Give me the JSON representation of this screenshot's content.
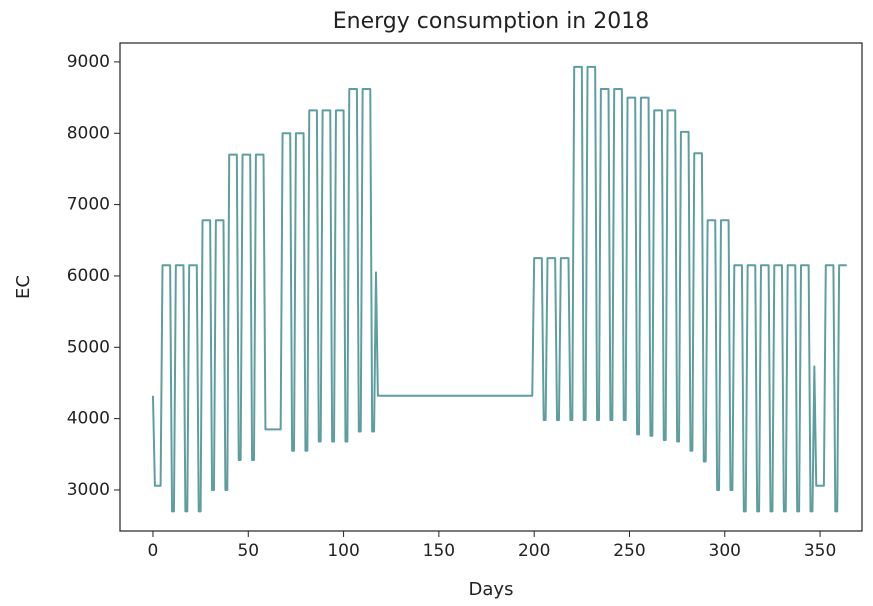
{
  "chart_data": {
    "type": "line",
    "title": "Energy consumption in 2018",
    "x_label": "Days",
    "y_label": "EC",
    "xlim": [
      -17.3,
      372
    ],
    "ylim": [
      2425,
      9265
    ],
    "xticks": [
      0,
      50,
      100,
      150,
      200,
      250,
      300,
      350
    ],
    "yticks": [
      3000,
      4000,
      5000,
      6000,
      7000,
      8000,
      9000
    ],
    "x": [
      0,
      1,
      2,
      3,
      4,
      5,
      6,
      7,
      8,
      9,
      10,
      11,
      12,
      13,
      14,
      15,
      16,
      17,
      18,
      19,
      20,
      21,
      22,
      23,
      24,
      25,
      26,
      27,
      28,
      29,
      30,
      31,
      32,
      33,
      34,
      35,
      36,
      37,
      38,
      39,
      40,
      41,
      42,
      43,
      44,
      45,
      46,
      47,
      48,
      49,
      50,
      51,
      52,
      53,
      54,
      55,
      56,
      57,
      58,
      59,
      60,
      61,
      62,
      63,
      64,
      65,
      66,
      67,
      68,
      69,
      70,
      71,
      72,
      73,
      74,
      75,
      76,
      77,
      78,
      79,
      80,
      81,
      82,
      83,
      84,
      85,
      86,
      87,
      88,
      89,
      90,
      91,
      92,
      93,
      94,
      95,
      96,
      97,
      98,
      99,
      100,
      101,
      102,
      103,
      104,
      105,
      106,
      107,
      108,
      109,
      110,
      111,
      112,
      113,
      114,
      115,
      116,
      117,
      118,
      119,
      120,
      121,
      122,
      123,
      124,
      125,
      126,
      127,
      128,
      129,
      130,
      131,
      132,
      133,
      134,
      135,
      136,
      137,
      138,
      139,
      140,
      141,
      142,
      143,
      144,
      145,
      146,
      147,
      148,
      149,
      150,
      151,
      152,
      153,
      154,
      155,
      156,
      157,
      158,
      159,
      160,
      161,
      162,
      163,
      164,
      165,
      166,
      167,
      168,
      169,
      170,
      171,
      172,
      173,
      174,
      175,
      176,
      177,
      178,
      179,
      180,
      181,
      182,
      183,
      184,
      185,
      186,
      187,
      188,
      189,
      190,
      191,
      192,
      193,
      194,
      195,
      196,
      197,
      198,
      199,
      200,
      201,
      202,
      203,
      204,
      205,
      206,
      207,
      208,
      209,
      210,
      211,
      212,
      213,
      214,
      215,
      216,
      217,
      218,
      219,
      220,
      221,
      222,
      223,
      224,
      225,
      226,
      227,
      228,
      229,
      230,
      231,
      232,
      233,
      234,
      235,
      236,
      237,
      238,
      239,
      240,
      241,
      242,
      243,
      244,
      245,
      246,
      247,
      248,
      249,
      250,
      251,
      252,
      253,
      254,
      255,
      256,
      257,
      258,
      259,
      260,
      261,
      262,
      263,
      264,
      265,
      266,
      267,
      268,
      269,
      270,
      271,
      272,
      273,
      274,
      275,
      276,
      277,
      278,
      279,
      280,
      281,
      282,
      283,
      284,
      285,
      286,
      287,
      288,
      289,
      290,
      291,
      292,
      293,
      294,
      295,
      296,
      297,
      298,
      299,
      300,
      301,
      302,
      303,
      304,
      305,
      306,
      307,
      308,
      309,
      310,
      311,
      312,
      313,
      314,
      315,
      316,
      317,
      318,
      319,
      320,
      321,
      322,
      323,
      324,
      325,
      326,
      327,
      328,
      329,
      330,
      331,
      332,
      333,
      334,
      335,
      336,
      337,
      338,
      339,
      340,
      341,
      342,
      343,
      344,
      345,
      346,
      347,
      348,
      349,
      350,
      351,
      352,
      353,
      354,
      355,
      356,
      357,
      358,
      359,
      360,
      361,
      362,
      363,
      364
    ],
    "series": [
      {
        "color": "#5f9ea0",
        "values": [
          4320,
          3060,
          3060,
          3060,
          3060,
          6150,
          6150,
          6150,
          6150,
          6150,
          2700,
          2700,
          6150,
          6150,
          6150,
          6150,
          6150,
          2700,
          2700,
          6150,
          6150,
          6150,
          6150,
          6150,
          2700,
          2700,
          6780,
          6780,
          6780,
          6780,
          6780,
          3000,
          3000,
          6780,
          6780,
          6780,
          6780,
          6780,
          3000,
          3000,
          7700,
          7700,
          7700,
          7700,
          7700,
          3420,
          3420,
          7700,
          7700,
          7700,
          7700,
          7700,
          3420,
          3420,
          7700,
          7700,
          7700,
          7700,
          7700,
          3850,
          3850,
          3850,
          3850,
          3850,
          3850,
          3850,
          3850,
          3850,
          8000,
          8000,
          8000,
          8000,
          8000,
          3550,
          3550,
          8000,
          8000,
          8000,
          8000,
          8000,
          3550,
          3550,
          8320,
          8320,
          8320,
          8320,
          8320,
          3680,
          3680,
          8320,
          8320,
          8320,
          8320,
          8320,
          3680,
          3680,
          8320,
          8320,
          8320,
          8320,
          8320,
          3680,
          3680,
          8620,
          8620,
          8620,
          8620,
          8620,
          3820,
          3820,
          8620,
          8620,
          8620,
          8620,
          8620,
          3820,
          3820,
          6050,
          4320,
          4320,
          4320,
          4320,
          4320,
          4320,
          4320,
          4320,
          4320,
          4320,
          4320,
          4320,
          4320,
          4320,
          4320,
          4320,
          4320,
          4320,
          4320,
          4320,
          4320,
          4320,
          4320,
          4320,
          4320,
          4320,
          4320,
          4320,
          4320,
          4320,
          4320,
          4320,
          4320,
          4320,
          4320,
          4320,
          4320,
          4320,
          4320,
          4320,
          4320,
          4320,
          4320,
          4320,
          4320,
          4320,
          4320,
          4320,
          4320,
          4320,
          4320,
          4320,
          4320,
          4320,
          4320,
          4320,
          4320,
          4320,
          4320,
          4320,
          4320,
          4320,
          4320,
          4320,
          4320,
          4320,
          4320,
          4320,
          4320,
          4320,
          4320,
          4320,
          4320,
          4320,
          4320,
          4320,
          4320,
          4320,
          4320,
          4320,
          4320,
          4320,
          6250,
          6250,
          6250,
          6250,
          6250,
          3980,
          3980,
          6250,
          6250,
          6250,
          6250,
          6250,
          3980,
          3980,
          6250,
          6250,
          6250,
          6250,
          6250,
          3980,
          3980,
          8930,
          8930,
          8930,
          8930,
          8930,
          3980,
          3980,
          8930,
          8930,
          8930,
          8930,
          8930,
          3980,
          3980,
          8620,
          8620,
          8620,
          8620,
          8620,
          3980,
          3980,
          8620,
          8620,
          8620,
          8620,
          8620,
          3980,
          3980,
          8500,
          8500,
          8500,
          8500,
          8500,
          3780,
          3780,
          8500,
          8500,
          8500,
          8500,
          8500,
          3760,
          3760,
          8320,
          8320,
          8320,
          8320,
          8320,
          3700,
          3700,
          8320,
          8320,
          8320,
          8320,
          8320,
          3680,
          3680,
          8020,
          8020,
          8020,
          8020,
          8020,
          3550,
          3550,
          7720,
          7720,
          7720,
          7720,
          7720,
          3400,
          3400,
          6780,
          6780,
          6780,
          6780,
          6780,
          3000,
          3000,
          6780,
          6780,
          6780,
          6780,
          6780,
          3000,
          3000,
          6150,
          6150,
          6150,
          6150,
          6150,
          2700,
          2700,
          6150,
          6150,
          6150,
          6150,
          6150,
          2700,
          2700,
          6150,
          6150,
          6150,
          6150,
          6150,
          2700,
          2700,
          6150,
          6150,
          6150,
          6150,
          6150,
          2700,
          2700,
          6150,
          6150,
          6150,
          6150,
          6150,
          2700,
          2700,
          6150,
          6150,
          6150,
          6150,
          6150,
          2700,
          2700,
          4730,
          3060,
          3060,
          3060,
          3060,
          3060,
          6150,
          6150,
          6150,
          6150,
          6150,
          2700,
          2700,
          6150,
          6150,
          6150,
          6150,
          6150
        ]
      }
    ]
  }
}
